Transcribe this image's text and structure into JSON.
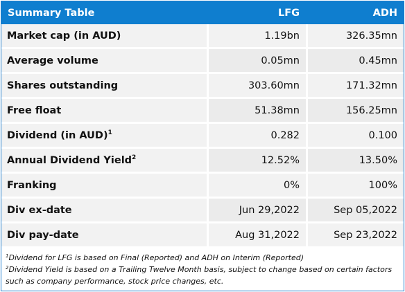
{
  "table": {
    "title": "Summary Table",
    "col_lfg": "LFG",
    "col_adh": "ADH",
    "rows": [
      {
        "label": "Market cap (in AUD)",
        "sup": "",
        "lfg": "1.19bn",
        "adh": "326.35mn"
      },
      {
        "label": "Average volume",
        "sup": "",
        "lfg": "0.05mn",
        "adh": "0.45mn"
      },
      {
        "label": "Shares outstanding",
        "sup": "",
        "lfg": "303.60mn",
        "adh": "171.32mn"
      },
      {
        "label": "Free float",
        "sup": "",
        "lfg": "51.38mn",
        "adh": "156.25mn"
      },
      {
        "label": "Dividend (in AUD)",
        "sup": "1",
        "lfg": "0.282",
        "adh": "0.100"
      },
      {
        "label": "Annual Dividend Yield",
        "sup": "2",
        "lfg": "12.52%",
        "adh": "13.50%"
      },
      {
        "label": "Franking",
        "sup": "",
        "lfg": "0%",
        "adh": "100%"
      },
      {
        "label": "Div ex-date",
        "sup": "",
        "lfg": "Jun 29,2022",
        "adh": "Sep 05,2022"
      },
      {
        "label": "Div pay-date",
        "sup": "",
        "lfg": "Aug 31,2022",
        "adh": "Sep 23,2022"
      }
    ]
  },
  "footnotes": [
    {
      "mark": "1",
      "text": "Dividend for LFG is based on Final (Reported) and ADH on Interim (Reported)"
    },
    {
      "mark": "2",
      "text": "Dividend Yield is based on a Trailing Twelve Month basis, subject to change based on certain factors such as company performance, stock price changes, etc."
    }
  ],
  "colors": {
    "header_bg": "#0f7ecf",
    "border": "#1f7ccc",
    "cell_bg": "#f2f2f2"
  }
}
